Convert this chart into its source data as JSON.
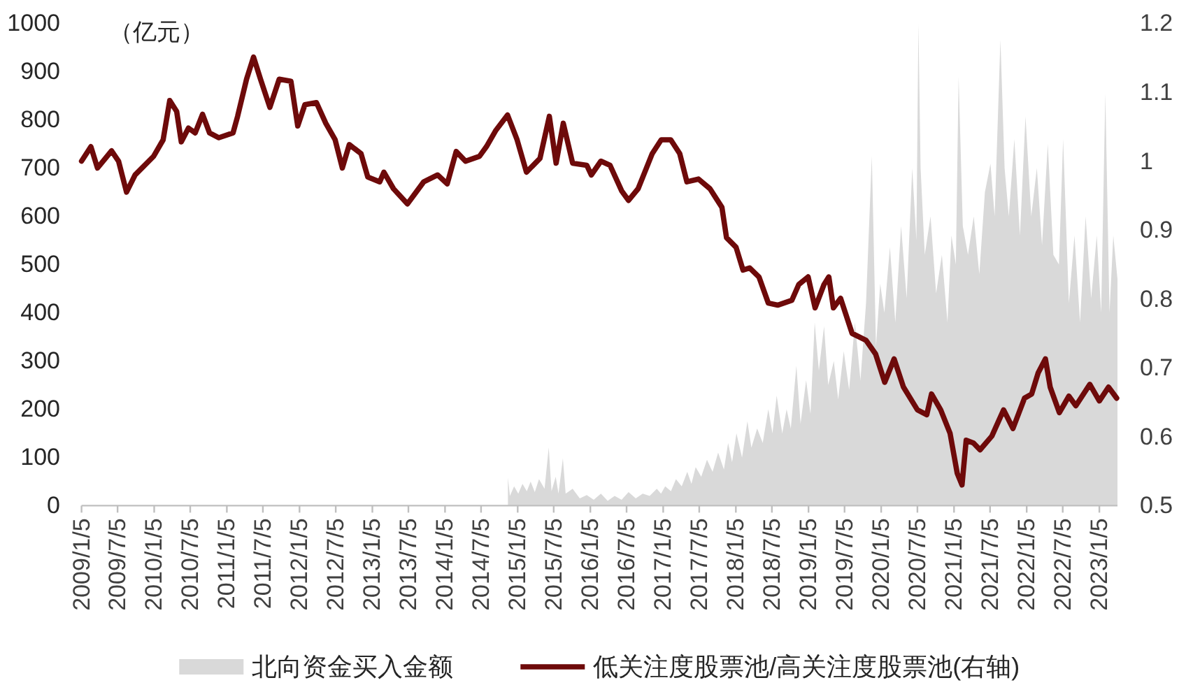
{
  "chart_data": {
    "type": "line",
    "ylabel": "（亿元）",
    "legend": "bottom",
    "xlim": [
      "2009-01-05",
      "2023-04-06"
    ],
    "xticks": [
      {
        "value": "2009-01-05",
        "label": "2009/1/5"
      },
      {
        "value": "2009-07-05",
        "label": "2009/7/5"
      },
      {
        "value": "2010-01-05",
        "label": "2010/1/5"
      },
      {
        "value": "2010-07-05",
        "label": "2010/7/5"
      },
      {
        "value": "2011-01-05",
        "label": "2011/1/5"
      },
      {
        "value": "2011-07-05",
        "label": "2011/7/5"
      },
      {
        "value": "2012-01-05",
        "label": "2012/1/5"
      },
      {
        "value": "2012-07-05",
        "label": "2012/7/5"
      },
      {
        "value": "2013-01-05",
        "label": "2013/1/5"
      },
      {
        "value": "2013-07-05",
        "label": "2013/7/5"
      },
      {
        "value": "2014-01-05",
        "label": "2014/1/5"
      },
      {
        "value": "2014-07-05",
        "label": "2014/7/5"
      },
      {
        "value": "2015-01-05",
        "label": "2015/1/5"
      },
      {
        "value": "2015-07-05",
        "label": "2015/7/5"
      },
      {
        "value": "2016-01-05",
        "label": "2016/1/5"
      },
      {
        "value": "2016-07-05",
        "label": "2016/7/5"
      },
      {
        "value": "2017-01-05",
        "label": "2017/1/5"
      },
      {
        "value": "2017-07-05",
        "label": "2017/7/5"
      },
      {
        "value": "2018-01-05",
        "label": "2018/1/5"
      },
      {
        "value": "2018-07-05",
        "label": "2018/7/5"
      },
      {
        "value": "2019-01-05",
        "label": "2019/1/5"
      },
      {
        "value": "2019-07-05",
        "label": "2019/7/5"
      },
      {
        "value": "2020-01-05",
        "label": "2020/1/5"
      },
      {
        "value": "2020-07-05",
        "label": "2020/7/5"
      },
      {
        "value": "2021-01-05",
        "label": "2021/1/5"
      },
      {
        "value": "2021-07-05",
        "label": "2021/7/5"
      },
      {
        "value": "2022-01-05",
        "label": "2022/1/5"
      },
      {
        "value": "2022-07-05",
        "label": "2022/7/5"
      },
      {
        "value": "2023-01-05",
        "label": "2023/1/5"
      }
    ],
    "ylim": [
      0,
      1000
    ],
    "yticks": [
      0,
      100,
      200,
      300,
      400,
      500,
      600,
      700,
      800,
      900,
      1000
    ],
    "y2lim": [
      0.5,
      1.2
    ],
    "y2ticks": [
      0.5,
      0.6,
      0.7,
      0.8,
      0.9,
      1,
      1.1,
      1.2
    ],
    "series": [
      {
        "name": "北向资金买入金额",
        "type": "area",
        "color": "#d9d9d9",
        "x": [
          "2014-11-17",
          "2014-11-27",
          "2014-12-18",
          "2015-01-08",
          "2015-01-29",
          "2015-02-20",
          "2015-03-11",
          "2015-04-01",
          "2015-04-22",
          "2015-05-20",
          "2015-06-10",
          "2015-06-24",
          "2015-07-15",
          "2015-07-29",
          "2015-08-20",
          "2015-09-03",
          "2015-10-08",
          "2015-11-13",
          "2015-12-18",
          "2016-01-22",
          "2016-02-27",
          "2016-04-01",
          "2016-05-06",
          "2016-06-10",
          "2016-07-15",
          "2016-08-20",
          "2016-09-24",
          "2016-10-29",
          "2016-12-04",
          "2016-12-25",
          "2017-01-15",
          "2017-02-13",
          "2017-03-10",
          "2017-04-08",
          "2017-05-06",
          "2017-05-27",
          "2017-06-17",
          "2017-07-15",
          "2017-08-13",
          "2017-09-10",
          "2017-10-08",
          "2017-11-06",
          "2017-11-27",
          "2017-12-17",
          "2018-01-08",
          "2018-02-05",
          "2018-03-04",
          "2018-03-24",
          "2018-04-22",
          "2018-05-20",
          "2018-06-17",
          "2018-07-08",
          "2018-07-29",
          "2018-08-26",
          "2018-09-17",
          "2018-10-08",
          "2018-11-05",
          "2018-11-26",
          "2018-12-24",
          "2019-01-15",
          "2019-02-05",
          "2019-02-26",
          "2019-03-24",
          "2019-04-14",
          "2019-05-12",
          "2019-06-03",
          "2019-07-01",
          "2019-07-28",
          "2019-08-26",
          "2019-09-23",
          "2019-10-21",
          "2019-11-19",
          "2019-12-10",
          "2019-12-31",
          "2020-01-21",
          "2020-02-18",
          "2020-03-16",
          "2020-04-14",
          "2020-05-12",
          "2020-06-09",
          "2020-06-30",
          "2020-07-10",
          "2020-07-21",
          "2020-08-11",
          "2020-09-09",
          "2020-10-07",
          "2020-11-05",
          "2020-12-03",
          "2020-12-23",
          "2021-01-14",
          "2021-01-28",
          "2021-02-18",
          "2021-03-16",
          "2021-04-14",
          "2021-05-12",
          "2021-06-09",
          "2021-07-07",
          "2021-07-28",
          "2021-08-26",
          "2021-09-16",
          "2021-10-07",
          "2021-11-04",
          "2021-12-02",
          "2021-12-30",
          "2022-01-28",
          "2022-02-25",
          "2022-03-23",
          "2022-04-21",
          "2022-05-19",
          "2022-06-16",
          "2022-07-07",
          "2022-08-05",
          "2022-09-02",
          "2022-09-30",
          "2022-10-28",
          "2022-11-25",
          "2022-12-23",
          "2023-01-14",
          "2023-02-04",
          "2023-02-25",
          "2023-03-16",
          "2023-04-06"
        ],
        "values": [
          58,
          20,
          40,
          25,
          45,
          30,
          50,
          28,
          55,
          35,
          121,
          30,
          60,
          25,
          98,
          25,
          35,
          15,
          22,
          12,
          25,
          10,
          20,
          12,
          28,
          15,
          25,
          20,
          35,
          25,
          40,
          30,
          55,
          40,
          70,
          45,
          80,
          60,
          95,
          70,
          110,
          75,
          130,
          90,
          150,
          100,
          175,
          120,
          160,
          130,
          200,
          150,
          228,
          150,
          200,
          160,
          290,
          170,
          260,
          190,
          380,
          280,
          372,
          250,
          300,
          220,
          320,
          240,
          380,
          260,
          420,
          725,
          330,
          460,
          400,
          536,
          380,
          580,
          430,
          700,
          550,
          1000,
          700,
          520,
          600,
          440,
          520,
          380,
          560,
          500,
          889,
          580,
          520,
          600,
          480,
          650,
          709,
          600,
          966,
          700,
          600,
          760,
          560,
          807,
          600,
          700,
          540,
          750,
          520,
          500,
          760,
          420,
          560,
          380,
          600,
          430,
          560,
          400,
          855,
          400,
          560,
          470
        ]
      },
      {
        "name": "低关注度股票池/高关注度股票池(右轴)",
        "axis": "y2",
        "color": "#6e0a0a",
        "x": [
          "2009-01-05",
          "2009-02-21",
          "2009-03-26",
          "2009-06-05",
          "2009-07-10",
          "2009-08-19",
          "2009-10-01",
          "2010-01-02",
          "2010-02-19",
          "2010-03-24",
          "2010-04-28",
          "2010-05-21",
          "2010-06-26",
          "2010-07-30",
          "2010-09-05",
          "2010-10-10",
          "2010-11-26",
          "2011-02-05",
          "2011-02-28",
          "2011-04-14",
          "2011-05-19",
          "2011-06-23",
          "2011-08-09",
          "2011-09-25",
          "2011-11-23",
          "2011-12-27",
          "2012-02-01",
          "2012-03-30",
          "2012-05-16",
          "2012-07-02",
          "2012-08-07",
          "2012-09-11",
          "2012-11-09",
          "2012-12-13",
          "2013-02-11",
          "2013-03-04",
          "2013-04-21",
          "2013-06-30",
          "2013-09-20",
          "2013-11-29",
          "2014-01-16",
          "2014-03-02",
          "2014-04-18",
          "2014-06-27",
          "2014-08-01",
          "2014-09-18",
          "2014-11-15",
          "2015-01-02",
          "2015-02-18",
          "2015-04-27",
          "2015-06-13",
          "2015-07-17",
          "2015-08-22",
          "2015-10-08",
          "2015-12-18",
          "2016-01-10",
          "2016-02-27",
          "2016-04-13",
          "2016-06-10",
          "2016-07-15",
          "2016-09-01",
          "2016-11-11",
          "2016-12-26",
          "2017-02-12",
          "2017-03-29",
          "2017-05-04",
          "2017-07-01",
          "2017-08-28",
          "2017-10-27",
          "2017-11-19",
          "2018-01-06",
          "2018-02-10",
          "2018-03-15",
          "2018-05-01",
          "2018-06-17",
          "2018-08-03",
          "2018-10-13",
          "2018-11-17",
          "2019-01-03",
          "2019-02-07",
          "2019-03-24",
          "2019-04-17",
          "2019-05-10",
          "2019-06-15",
          "2019-08-12",
          "2019-10-21",
          "2019-12-08",
          "2020-01-23",
          "2020-03-10",
          "2020-04-26",
          "2020-07-05",
          "2020-08-21",
          "2020-09-14",
          "2020-10-30",
          "2020-12-16",
          "2021-01-21",
          "2021-02-14",
          "2021-03-07",
          "2021-04-12",
          "2021-05-16",
          "2021-07-14",
          "2021-09-11",
          "2021-10-28",
          "2021-12-25",
          "2022-01-30",
          "2022-03-04",
          "2022-04-09",
          "2022-05-03",
          "2022-06-18",
          "2022-08-05",
          "2022-09-09",
          "2022-11-18",
          "2023-01-05",
          "2023-02-20",
          "2023-04-02"
        ],
        "values": [
          1.0,
          1.021,
          0.99,
          1.015,
          1.0,
          0.955,
          0.98,
          1.007,
          1.031,
          1.088,
          1.072,
          1.028,
          1.048,
          1.041,
          1.068,
          1.041,
          1.034,
          1.041,
          1.065,
          1.119,
          1.151,
          1.119,
          1.078,
          1.119,
          1.116,
          1.051,
          1.082,
          1.085,
          1.055,
          1.031,
          0.99,
          1.024,
          1.011,
          0.977,
          0.97,
          0.984,
          0.96,
          0.938,
          0.97,
          0.98,
          0.967,
          1.014,
          1.0,
          1.007,
          1.021,
          1.045,
          1.067,
          1.031,
          0.984,
          1.004,
          1.065,
          0.997,
          1.055,
          0.997,
          0.994,
          0.98,
          1.0,
          0.994,
          0.957,
          0.943,
          0.96,
          1.011,
          1.031,
          1.031,
          1.011,
          0.97,
          0.974,
          0.96,
          0.933,
          0.889,
          0.875,
          0.842,
          0.845,
          0.832,
          0.794,
          0.791,
          0.798,
          0.821,
          0.832,
          0.787,
          0.821,
          0.832,
          0.787,
          0.801,
          0.75,
          0.74,
          0.72,
          0.679,
          0.713,
          0.672,
          0.639,
          0.632,
          0.662,
          0.639,
          0.605,
          0.547,
          0.53,
          0.595,
          0.591,
          0.581,
          0.601,
          0.639,
          0.612,
          0.656,
          0.662,
          0.693,
          0.713,
          0.672,
          0.635,
          0.659,
          0.645,
          0.676,
          0.652,
          0.672,
          0.656
        ]
      }
    ]
  }
}
